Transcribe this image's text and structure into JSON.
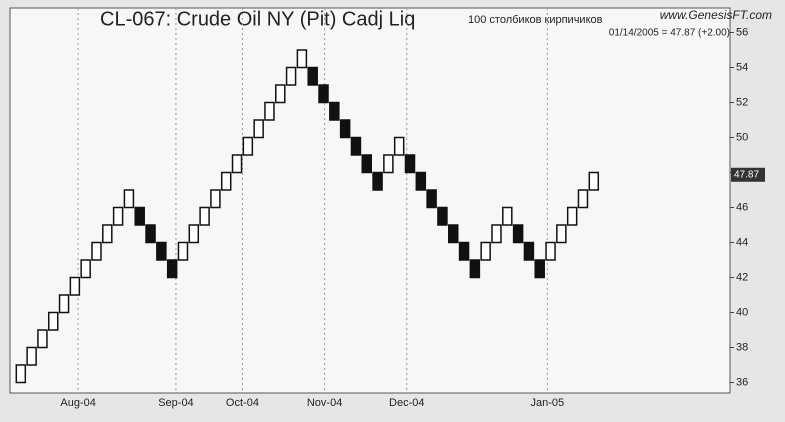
{
  "chart_data": {
    "type": "renko",
    "title": "CL-067:  Crude Oil NY (Pit) Cadj Liq",
    "subtitle": "100 столбиков кирпичиков",
    "source": "www.GenesisFT.com",
    "last_quote": "01/14/2005 = 47.87 (+2.00)",
    "last_price": 47.87,
    "open": [
      36,
      37,
      38,
      39,
      40,
      41,
      42,
      43,
      44,
      45,
      46,
      46,
      45,
      44,
      43,
      43,
      44,
      45,
      46,
      47,
      48,
      49,
      50,
      51,
      52,
      53,
      54,
      54,
      53,
      52,
      51,
      50,
      49,
      48,
      48,
      49,
      49,
      48,
      47,
      46,
      45,
      44,
      43,
      43,
      44,
      45,
      45,
      44,
      43,
      43,
      44,
      45,
      46,
      47
    ],
    "close": [
      37,
      38,
      39,
      40,
      41,
      42,
      43,
      44,
      45,
      46,
      47,
      45,
      44,
      43,
      42,
      44,
      45,
      46,
      47,
      48,
      49,
      50,
      51,
      52,
      53,
      54,
      55,
      53,
      52,
      51,
      50,
      49,
      48,
      47,
      49,
      50,
      48,
      47,
      46,
      45,
      44,
      43,
      42,
      44,
      45,
      46,
      44,
      43,
      42,
      44,
      45,
      46,
      47,
      48
    ],
    "up_color": "#ffffff",
    "down_color": "#111111",
    "ylim": [
      35.4,
      57.4
    ],
    "yticks": [
      36,
      38,
      40,
      42,
      44,
      46,
      48,
      50,
      52,
      54,
      56
    ],
    "xlim": [
      -1,
      65.6
    ],
    "xticks": [
      {
        "value": 5.3,
        "label": "Aug-04"
      },
      {
        "value": 14.35,
        "label": "Sep-04"
      },
      {
        "value": 20.5,
        "label": "Oct-04"
      },
      {
        "value": 28.1,
        "label": "Nov-04"
      },
      {
        "value": 35.7,
        "label": "Dec-04"
      },
      {
        "value": 48.7,
        "label": "Jan-05"
      }
    ],
    "grid": true
  }
}
